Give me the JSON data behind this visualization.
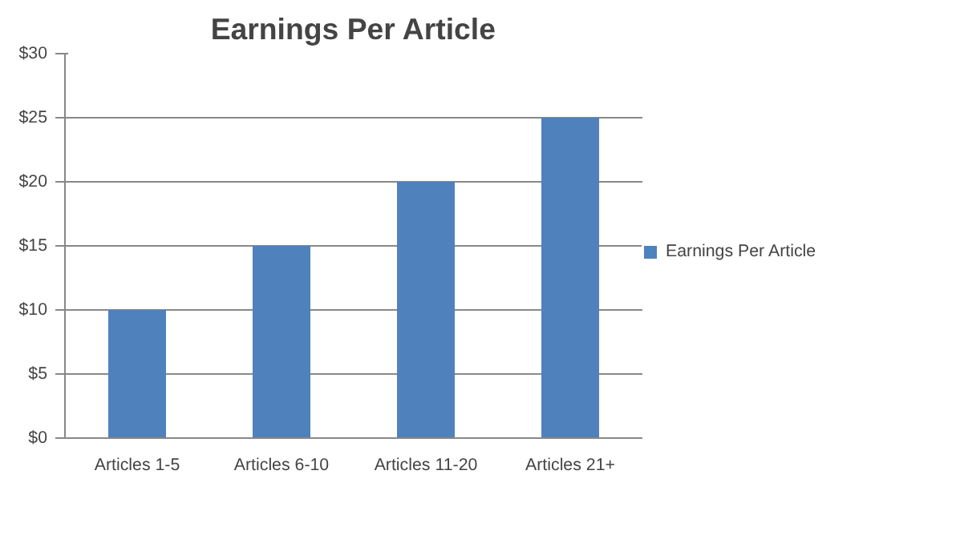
{
  "chart_data": {
    "type": "bar",
    "title": "Earnings Per Article",
    "categories": [
      "Articles 1-5",
      "Articles 6-10",
      "Articles 11-20",
      "Articles 21+"
    ],
    "series": [
      {
        "name": "Earnings Per Article",
        "color": "#4f81bd",
        "values": [
          10,
          15,
          20,
          25
        ]
      }
    ],
    "ylim": [
      0,
      30
    ],
    "yticks": [
      {
        "value": 0,
        "label": "$0"
      },
      {
        "value": 5,
        "label": "$5"
      },
      {
        "value": 10,
        "label": "$10"
      },
      {
        "value": 15,
        "label": "$15"
      },
      {
        "value": 20,
        "label": "$20"
      },
      {
        "value": 25,
        "label": "$25"
      },
      {
        "value": 30,
        "label": "$30"
      }
    ],
    "grid": "y",
    "legend": "right"
  }
}
